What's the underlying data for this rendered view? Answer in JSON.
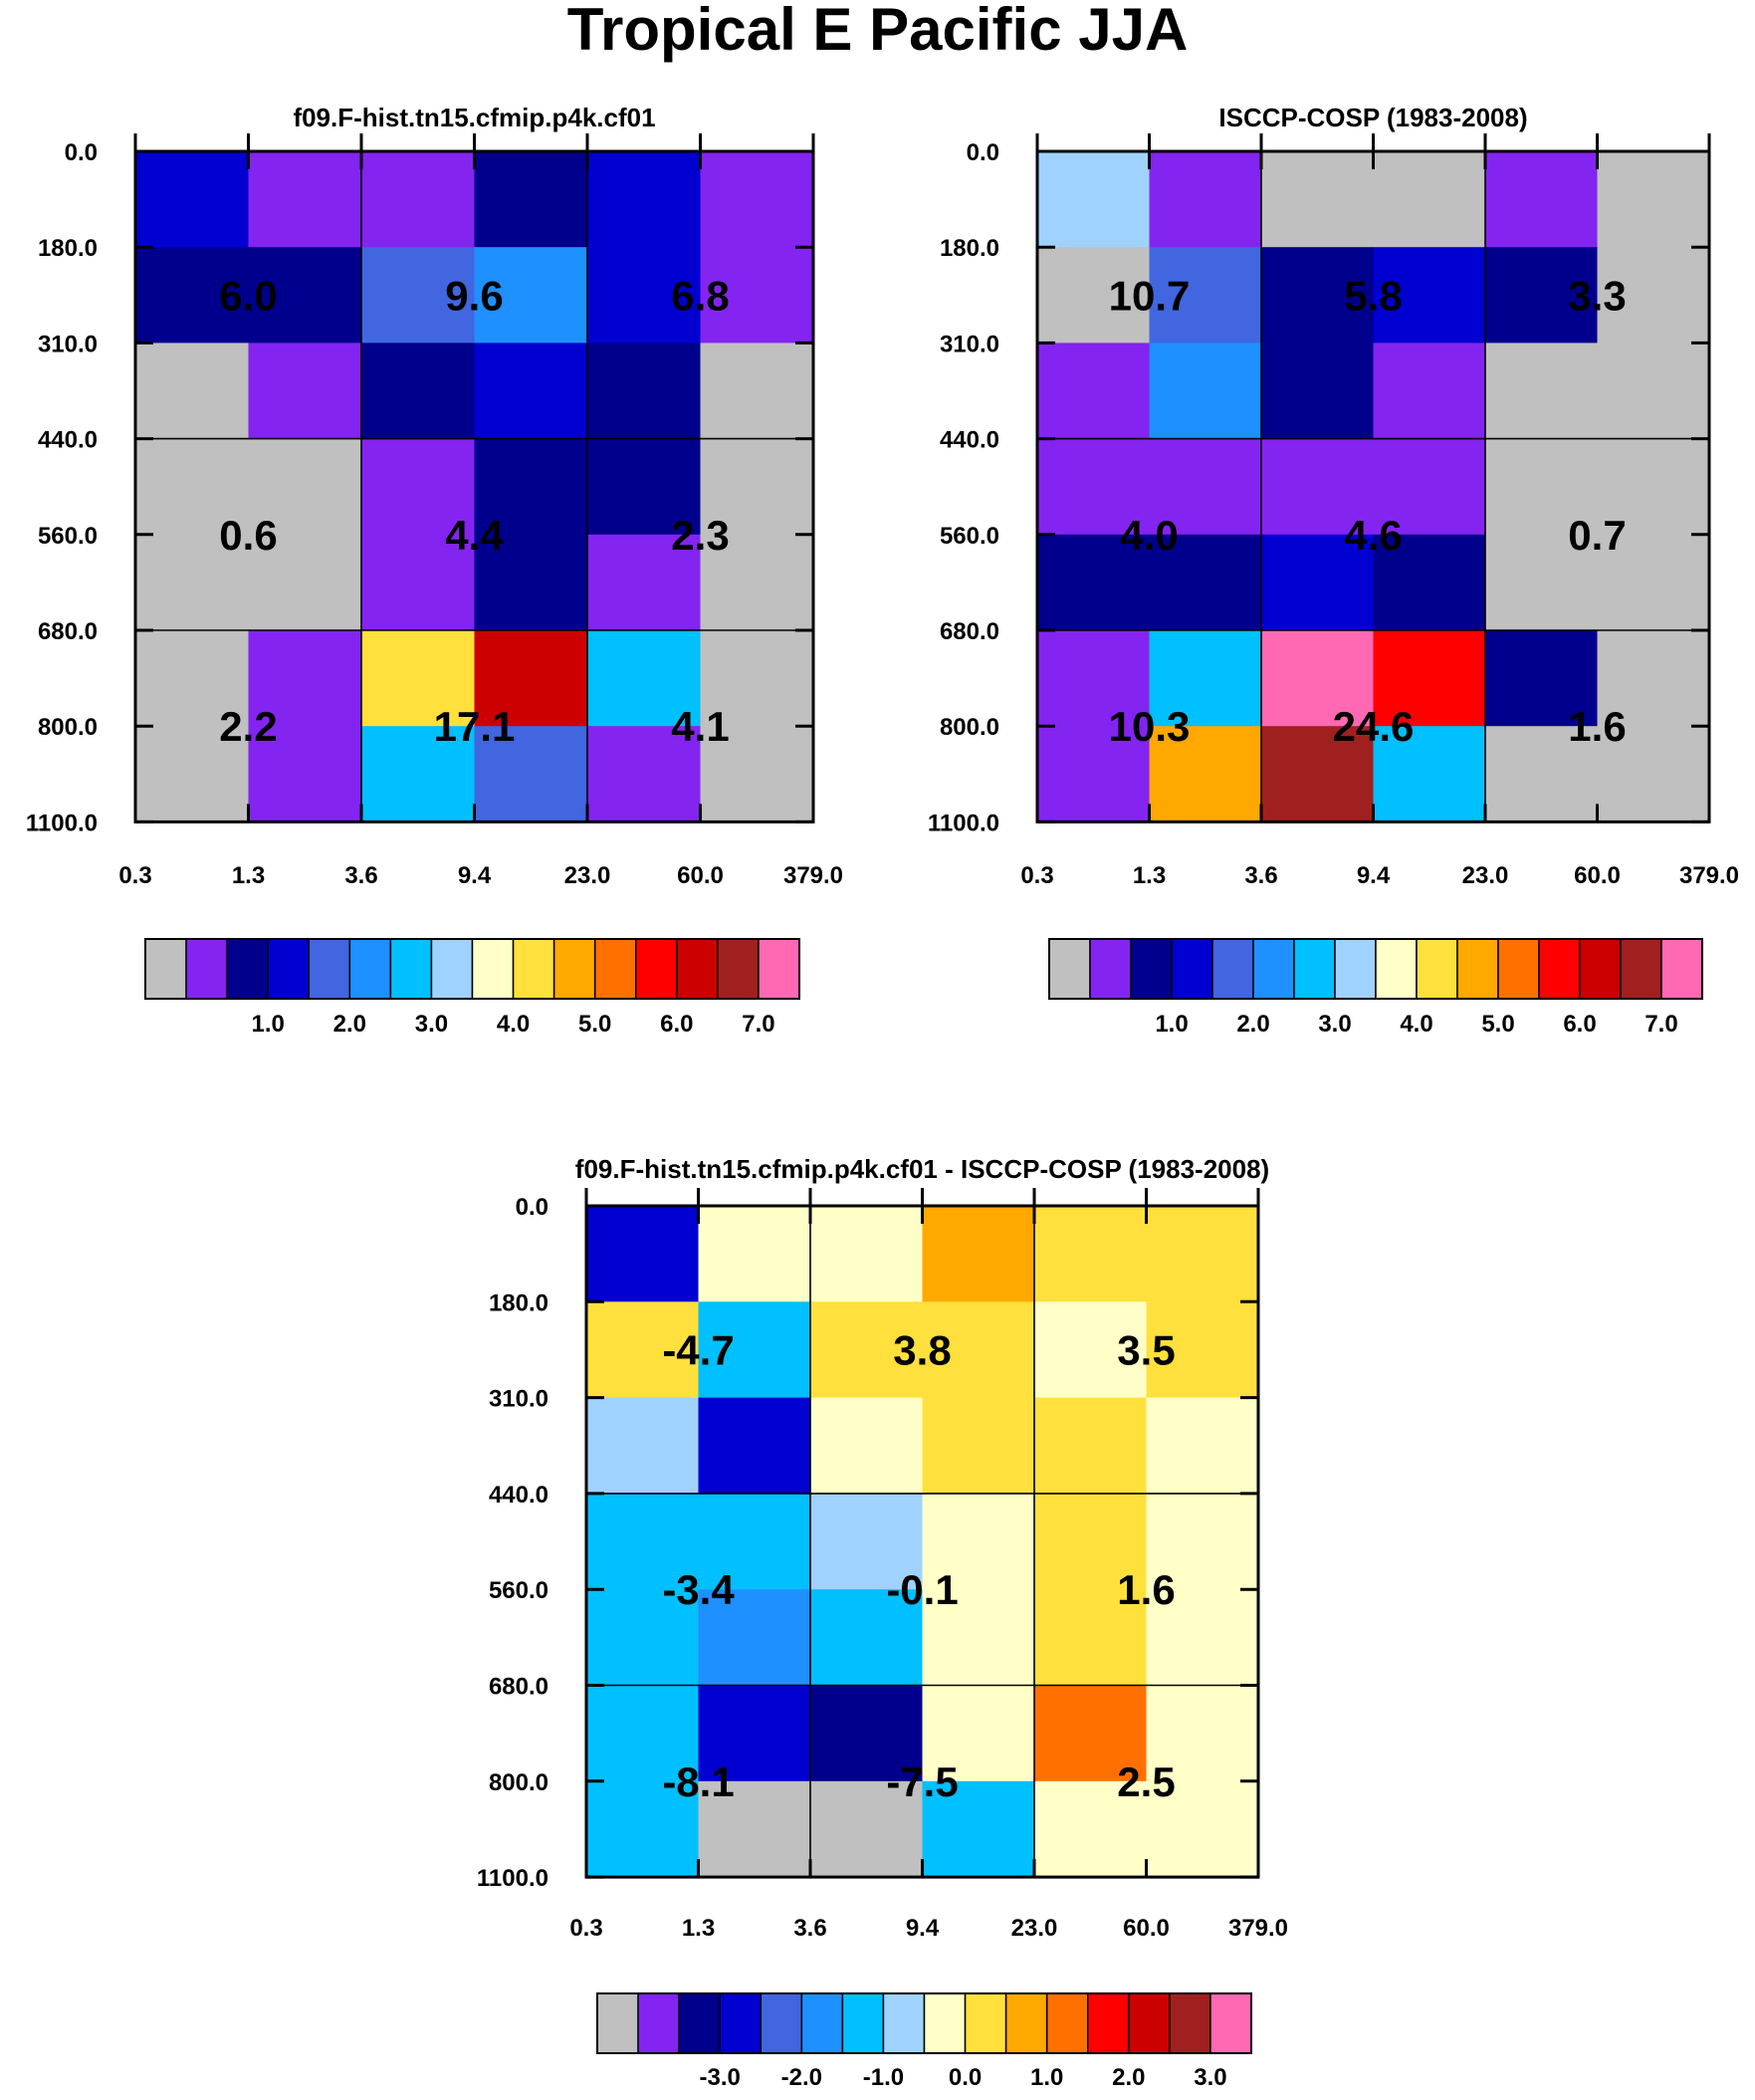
{
  "title": "Tropical E Pacific JJA",
  "palette_colors": [
    "#c0c0c0",
    "#8424f0",
    "#00008c",
    "#0000d0",
    "#4166e0",
    "#1e90ff",
    "#00c0ff",
    "#a0d2ff",
    "#ffffc8",
    "#ffe03c",
    "#ffa800",
    "#ff7000",
    "#ff0000",
    "#cc0000",
    "#a02020",
    "#ff69b4"
  ],
  "chart_data": [
    {
      "type": "heatmap",
      "title": "f09.F-hist.tn15.cfmip.p4k.cf01",
      "x_tick_labels": [
        "0.3",
        "1.3",
        "3.6",
        "9.4",
        "23.0",
        "60.0",
        "379.0"
      ],
      "y_tick_labels": [
        "0.0",
        "180.0",
        "310.0",
        "440.0",
        "560.0",
        "680.0",
        "800.0",
        "1100.0"
      ],
      "cell_color_index_rows_top_to_bottom": [
        [
          3,
          1,
          1,
          2,
          3,
          1
        ],
        [
          2,
          2,
          4,
          5,
          3,
          1
        ],
        [
          0,
          1,
          2,
          3,
          2,
          0
        ],
        [
          0,
          0,
          1,
          2,
          2,
          0
        ],
        [
          0,
          0,
          1,
          2,
          1,
          0
        ],
        [
          0,
          1,
          9,
          13,
          6,
          0
        ],
        [
          0,
          1,
          6,
          4,
          1,
          0
        ]
      ],
      "group_totals_rows_top_to_bottom": [
        [
          "6.0",
          "9.6",
          "6.8"
        ],
        [
          "0.6",
          "4.4",
          "2.3"
        ],
        [
          "2.2",
          "17.1",
          "4.1"
        ]
      ],
      "colorbar": {
        "labels": [
          "1.0",
          "2.0",
          "3.0",
          "4.0",
          "5.0",
          "6.0",
          "7.0"
        ]
      }
    },
    {
      "type": "heatmap",
      "title": "ISCCP-COSP (1983-2008)",
      "x_tick_labels": [
        "0.3",
        "1.3",
        "3.6",
        "9.4",
        "23.0",
        "60.0",
        "379.0"
      ],
      "y_tick_labels": [
        "0.0",
        "180.0",
        "310.0",
        "440.0",
        "560.0",
        "680.0",
        "800.0",
        "1100.0"
      ],
      "cell_color_index_rows_top_to_bottom": [
        [
          7,
          1,
          0,
          0,
          1,
          0
        ],
        [
          0,
          4,
          2,
          3,
          2,
          0
        ],
        [
          1,
          5,
          2,
          1,
          0,
          0
        ],
        [
          1,
          1,
          1,
          1,
          0,
          0
        ],
        [
          2,
          2,
          3,
          2,
          0,
          0
        ],
        [
          1,
          6,
          15,
          12,
          2,
          0
        ],
        [
          1,
          10,
          14,
          6,
          0,
          0
        ]
      ],
      "group_totals_rows_top_to_bottom": [
        [
          "10.7",
          "5.8",
          "3.3"
        ],
        [
          "4.0",
          "4.6",
          "0.7"
        ],
        [
          "10.3",
          "24.6",
          "1.6"
        ]
      ],
      "colorbar": {
        "labels": [
          "1.0",
          "2.0",
          "3.0",
          "4.0",
          "5.0",
          "6.0",
          "7.0"
        ]
      }
    },
    {
      "type": "heatmap",
      "title": "f09.F-hist.tn15.cfmip.p4k.cf01 - ISCCP-COSP (1983-2008)",
      "x_tick_labels": [
        "0.3",
        "1.3",
        "3.6",
        "9.4",
        "23.0",
        "60.0",
        "379.0"
      ],
      "y_tick_labels": [
        "0.0",
        "180.0",
        "310.0",
        "440.0",
        "560.0",
        "680.0",
        "800.0",
        "1100.0"
      ],
      "cell_color_index_rows_top_to_bottom": [
        [
          3,
          8,
          8,
          10,
          9,
          9
        ],
        [
          9,
          6,
          9,
          9,
          8,
          9
        ],
        [
          7,
          3,
          8,
          9,
          9,
          8
        ],
        [
          6,
          6,
          7,
          8,
          9,
          8
        ],
        [
          6,
          5,
          6,
          8,
          9,
          8
        ],
        [
          6,
          3,
          2,
          8,
          11,
          8
        ],
        [
          6,
          0,
          0,
          6,
          8,
          8
        ]
      ],
      "group_totals_rows_top_to_bottom": [
        [
          "-4.7",
          "3.8",
          "3.5"
        ],
        [
          "-3.4",
          "-0.1",
          "1.6"
        ],
        [
          "-8.1",
          "-7.5",
          "2.5"
        ]
      ],
      "colorbar": {
        "labels": [
          "-3.0",
          "-2.0",
          "-1.0",
          "0.0",
          "1.0",
          "2.0",
          "3.0"
        ]
      }
    }
  ]
}
